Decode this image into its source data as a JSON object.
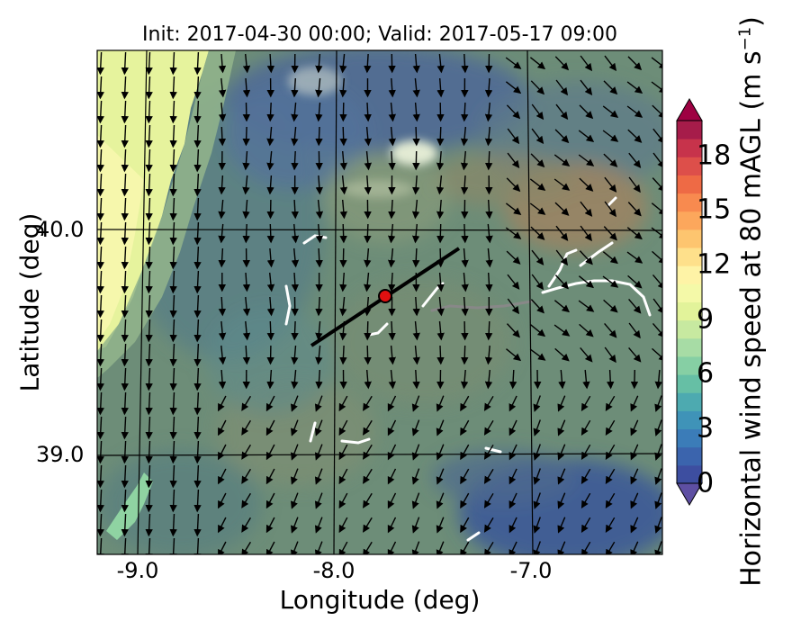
{
  "title": "Init: 2017-04-30 00:00; Valid: 2017-05-17 09:00",
  "x_axis": {
    "label": "Longitude (deg)",
    "ticks": [
      "-9.0",
      "-8.0",
      "-7.0"
    ],
    "tick_values": [
      -9.0,
      -8.0,
      -7.0
    ],
    "range": [
      -9.2,
      -6.35
    ]
  },
  "y_axis": {
    "label": "Latitude (deg)",
    "ticks": [
      "40.0",
      "39.0"
    ],
    "tick_values": [
      40.0,
      39.0
    ],
    "range": [
      38.45,
      40.78
    ]
  },
  "colorbar": {
    "label_prefix": "Horizontal wind speed at 80 mAGL (m s",
    "label_exponent": "−1",
    "label_suffix": ")",
    "ticks": [
      "18",
      "15",
      "12",
      "9",
      "6",
      "3",
      "0"
    ],
    "tick_values": [
      18,
      15,
      12,
      9,
      6,
      3,
      0
    ],
    "range": [
      0,
      20
    ],
    "colors": [
      "#3d4ea0",
      "#3b64ad",
      "#3b7cb8",
      "#3f93b8",
      "#4daab0",
      "#66bfa5",
      "#86cfa4",
      "#a7dca5",
      "#c7e9a0",
      "#e2f39a",
      "#f4f9a8",
      "#fef3a6",
      "#fee08b",
      "#fdc56f",
      "#fca75c",
      "#f88a4f",
      "#ee6a45",
      "#dd4f4a",
      "#c7334b",
      "#a61c4a"
    ]
  },
  "chart_data": {
    "type": "map",
    "cross_section_line": {
      "start": [
        -8.1,
        39.45
      ],
      "end": [
        -7.35,
        39.9
      ]
    },
    "marker": {
      "lon": -7.75,
      "lat": 39.68,
      "color": "#e01010"
    },
    "field": "wind speed contours with vector arrows (southward flow)"
  }
}
